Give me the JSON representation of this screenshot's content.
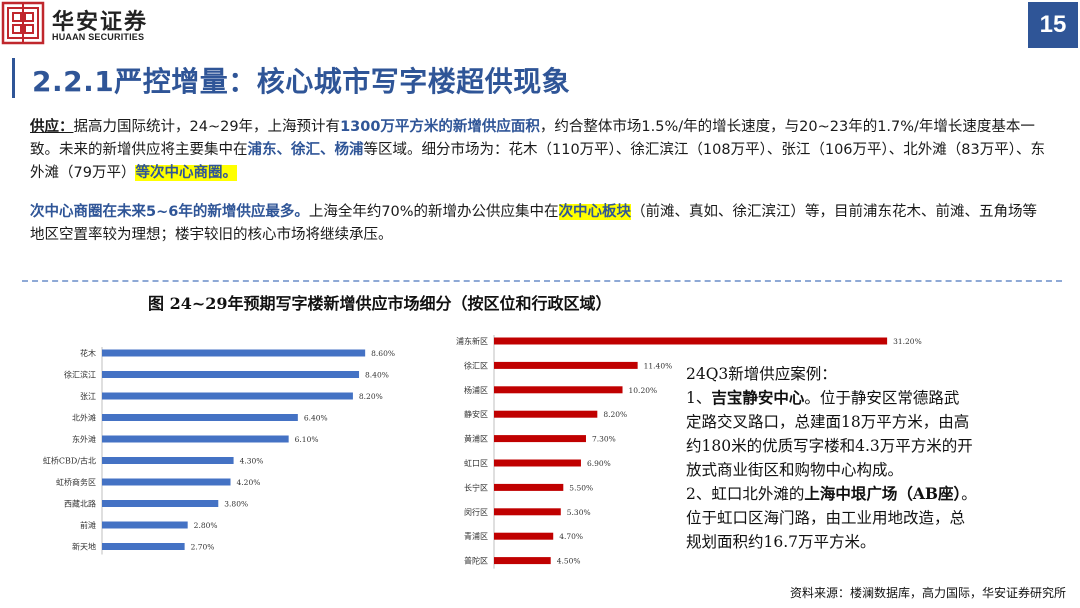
{
  "header": {
    "brand_cn": "华安证券",
    "brand_en": "HUAAN SECURITIES",
    "page_number": "15",
    "title": "2.2.1严控增量：核心城市写字楼超供现象",
    "logo_color": "#c0272d",
    "accent_color": "#2f5597"
  },
  "para1": {
    "label": "供应：",
    "t1": "据高力国际统计，24~29年，上海预计有",
    "h1": "1300万平方米",
    "h2": "的新增供应面积",
    "t2": "，约合整体市场1.5%/年的增长速度，与20~23年的1.7%/年增长速度基本一致。未来的新增供应将主要集中在",
    "h3": "浦东、徐汇、杨浦",
    "t3": "等区域。细分市场为：花木（110万平）、徐汇滨江（108万平）、张江（106万平）、北外滩（83万平）、东外滩（79万平）",
    "h4": "等次中心商圈。"
  },
  "para2": {
    "h1": "次中心商圈在未来5~6年的新增供应最多。",
    "t1": "上海全年约70%的新增办公供应集中在",
    "h2": "次中心板块",
    "t2": "（前滩、真如、徐汇滨江）等，目前浦东花木、前滩、五角场等地区空置率较为理想；楼宇较旧的核心市场将继续承压。"
  },
  "chart_title": "图 24~29年预期写字楼新增供应市场细分（按区位和行政区域）",
  "chart_data": [
    {
      "type": "bar",
      "orientation": "horizontal",
      "color": "#4472c4",
      "categories": [
        "花木",
        "徐汇滨江",
        "张江",
        "北外滩",
        "东外滩",
        "虹桥CBD/古北",
        "虹桥商务区",
        "西藏北路",
        "前滩",
        "新天地"
      ],
      "values": [
        8.6,
        8.4,
        8.2,
        6.4,
        6.1,
        4.3,
        4.2,
        3.8,
        2.8,
        2.7
      ],
      "labels": [
        "8.60%",
        "8.40%",
        "8.20%",
        "6.40%",
        "6.10%",
        "4.30%",
        "4.20%",
        "3.80%",
        "2.80%",
        "2.70%"
      ],
      "xlim": [
        0,
        10
      ]
    },
    {
      "type": "bar",
      "orientation": "horizontal",
      "color": "#c00000",
      "categories": [
        "浦东新区",
        "徐汇区",
        "杨浦区",
        "静安区",
        "黄浦区",
        "虹口区",
        "长宁区",
        "闵行区",
        "青浦区",
        "普陀区"
      ],
      "values": [
        31.2,
        11.4,
        10.2,
        8.2,
        7.3,
        6.9,
        5.5,
        5.3,
        4.7,
        4.5
      ],
      "labels": [
        "31.20%",
        "11.40%",
        "10.20%",
        "8.20%",
        "7.30%",
        "6.90%",
        "5.50%",
        "5.30%",
        "4.70%",
        "4.50%"
      ],
      "xlim": [
        0,
        35
      ]
    }
  ],
  "case": {
    "title": "24Q3新增供应案例：",
    "c1_prefix": "1、",
    "c1_name": "吉宝静安中心",
    "c1_l1": "。位于静安区常德路武",
    "c1_l2": "定路交叉路口，总建面18万平方米，由高",
    "c1_l3": "约180米的优质写字楼和4.3万平方米的开",
    "c1_l4": "放式商业街区和购物中心构成。",
    "c2_prefix": "2、虹口北外滩的",
    "c2_name": "上海中垠广场（AB座）",
    "c2_suffix": "。",
    "c2_l2": "位于虹口区海门路，由工业用地改造，总",
    "c2_l3": "规划面积约16.7万平方米。"
  },
  "source": "资料来源：楼澜数据库，高力国际，华安证券研究所"
}
